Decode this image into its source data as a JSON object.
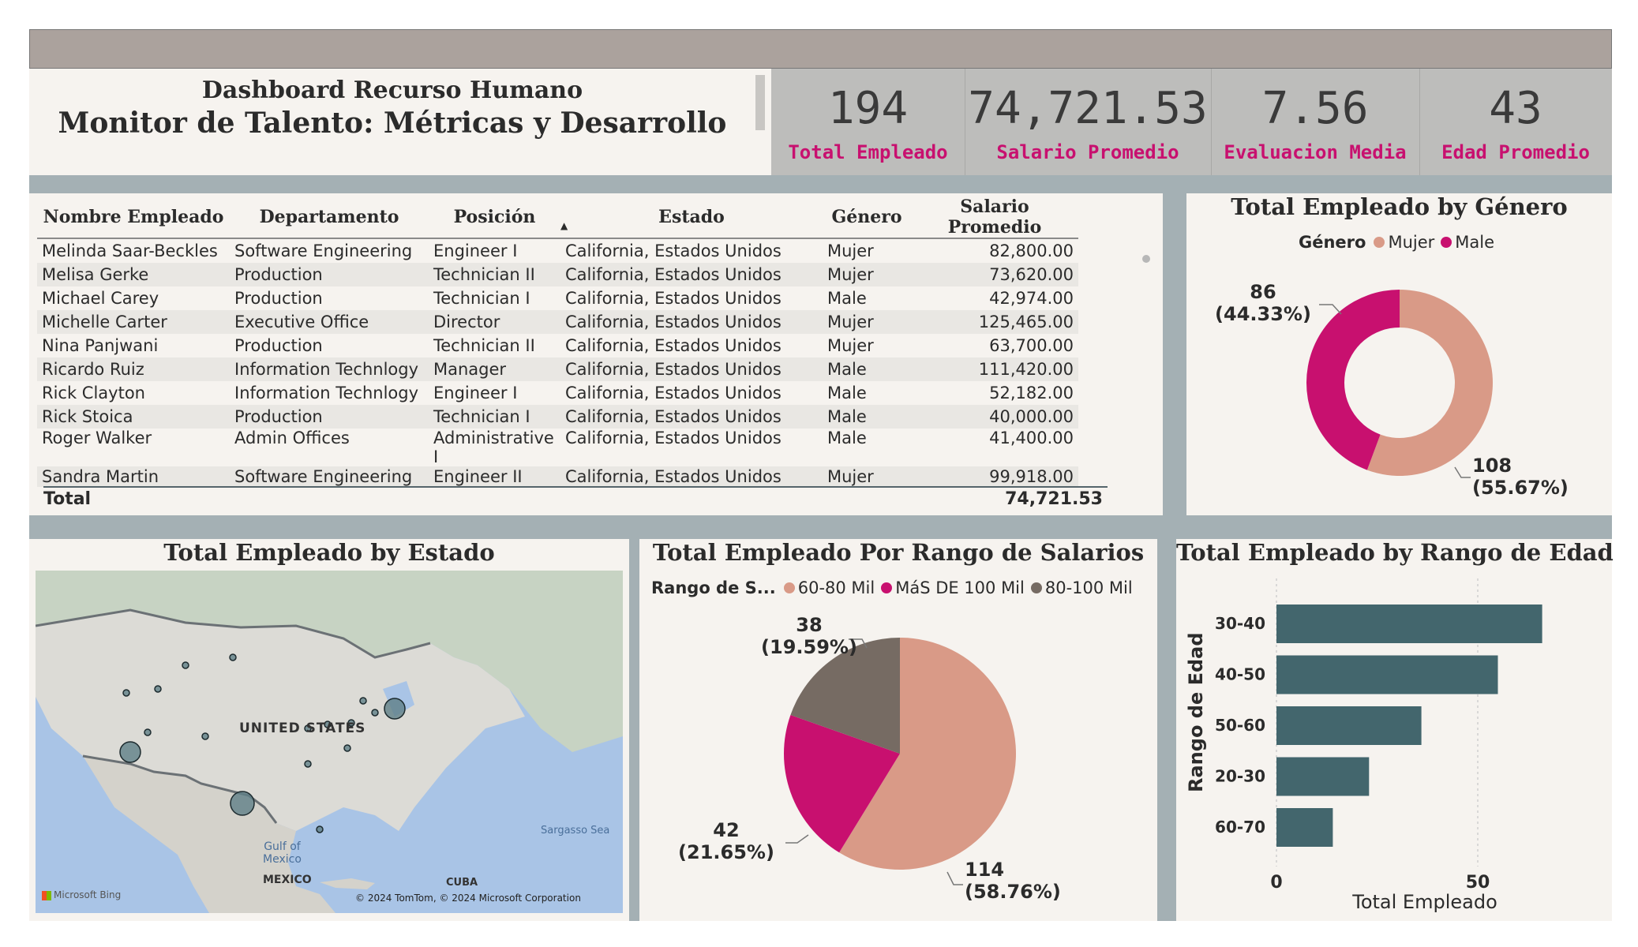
{
  "header": {
    "title_line1": "Dashboard Recurso Humano",
    "title_line2": "Monitor de Talento: Métricas y Desarrollo"
  },
  "kpis": [
    {
      "value": "194",
      "label": "Total Empleado"
    },
    {
      "value": "74,721.53",
      "label": "Salario Promedio"
    },
    {
      "value": "7.56",
      "label": "Evaluacion Media"
    },
    {
      "value": "43",
      "label": "Edad Promedio"
    }
  ],
  "employee_table": {
    "columns": [
      "Nombre Empleado",
      "Departamento",
      "Posición",
      "Estado",
      "Género",
      "Salario Promedio"
    ],
    "sorted_column": "Posición",
    "rows": [
      [
        "Melinda Saar-Beckles",
        "Software Engineering",
        "Engineer I",
        "California, Estados Unidos",
        "Mujer",
        "82,800.00"
      ],
      [
        "Melisa Gerke",
        "Production",
        "Technician II",
        "California, Estados Unidos",
        "Mujer",
        "73,620.00"
      ],
      [
        "Michael Carey",
        "Production",
        "Technician I",
        "California, Estados Unidos",
        "Male",
        "42,974.00"
      ],
      [
        "Michelle Carter",
        "Executive Office",
        "Director",
        "California, Estados Unidos",
        "Mujer",
        "125,465.00"
      ],
      [
        "Nina Panjwani",
        "Production",
        "Technician II",
        "California, Estados Unidos",
        "Mujer",
        "63,700.00"
      ],
      [
        "Ricardo Ruiz",
        "Information Technlogy",
        "Manager",
        "California, Estados Unidos",
        "Male",
        "111,420.00"
      ],
      [
        "Rick Clayton",
        "Information Technlogy",
        "Engineer I",
        "California, Estados Unidos",
        "Male",
        "52,182.00"
      ],
      [
        "Rick Stoica",
        "Production",
        "Technician I",
        "California, Estados Unidos",
        "Male",
        "40,000.00"
      ],
      [
        "Roger Walker",
        "Admin Offices",
        "Administrative I",
        "California, Estados Unidos",
        "Male",
        "41,400.00"
      ],
      [
        "Sandra Martin",
        "Software Engineering",
        "Engineer II",
        "California, Estados Unidos",
        "Mujer",
        "99,918.00"
      ]
    ],
    "total_label": "Total",
    "total_value": "74,721.53"
  },
  "gender_chart": {
    "title": "Total Empleado by Género",
    "legend_title": "Género",
    "labels": {
      "male": "86\n(44.33%)",
      "female": "108\n(55.67%)"
    }
  },
  "map_panel": {
    "title": "Total Empleado by Estado",
    "labels": {
      "us": "UNITED STATES",
      "mexico": "MEXICO",
      "cuba": "CUBA",
      "gulf": "Gulf of\nMexico",
      "sargasso": "Sargasso Sea",
      "bing": "Microsoft Bing",
      "copyright": "© 2024 TomTom, © 2024 Microsoft Corporation"
    }
  },
  "salary_chart": {
    "title": "Total Empleado Por Rango de Salarios",
    "legend_title": "Rango de S...",
    "labels": {
      "a": "114\n(58.76%)",
      "b": "42\n(21.65%)",
      "c": "38\n(19.59%)"
    }
  },
  "age_chart": {
    "title": "Total Empleado by Rango de Edad",
    "ylabel": "Rango de Edad",
    "xlabel": "Total Empleado"
  },
  "colors": {
    "female": "#d99a87",
    "male": "#c8106f",
    "range_80_100": "#766b63",
    "bar": "#43666d",
    "kpi_label": "#c8106f"
  },
  "chart_data": [
    {
      "type": "pie",
      "title": "Total Empleado by Género",
      "legend_title": "Género",
      "categories": [
        "Mujer",
        "Male"
      ],
      "values": [
        108,
        86
      ],
      "percent": [
        55.67,
        44.33
      ],
      "donut": true,
      "legend_position": "top"
    },
    {
      "type": "pie",
      "title": "Total Empleado Por Rango de Salarios",
      "legend_title": "Rango de S...",
      "categories": [
        "60-80 Mil",
        "MáS DE 100 Mil",
        "80-100 Mil"
      ],
      "values": [
        114,
        42,
        38
      ],
      "percent": [
        58.76,
        21.65,
        19.59
      ],
      "legend_position": "top"
    },
    {
      "type": "bar",
      "orientation": "horizontal",
      "title": "Total Empleado by Rango de Edad",
      "categories": [
        "30-40",
        "40-50",
        "50-60",
        "20-30",
        "60-70"
      ],
      "values": [
        66,
        55,
        36,
        23,
        14
      ],
      "xlabel": "Total Empleado",
      "ylabel": "Rango de Edad",
      "xticks": [
        0,
        50
      ],
      "xlim": [
        0,
        75
      ],
      "grid": true
    }
  ]
}
